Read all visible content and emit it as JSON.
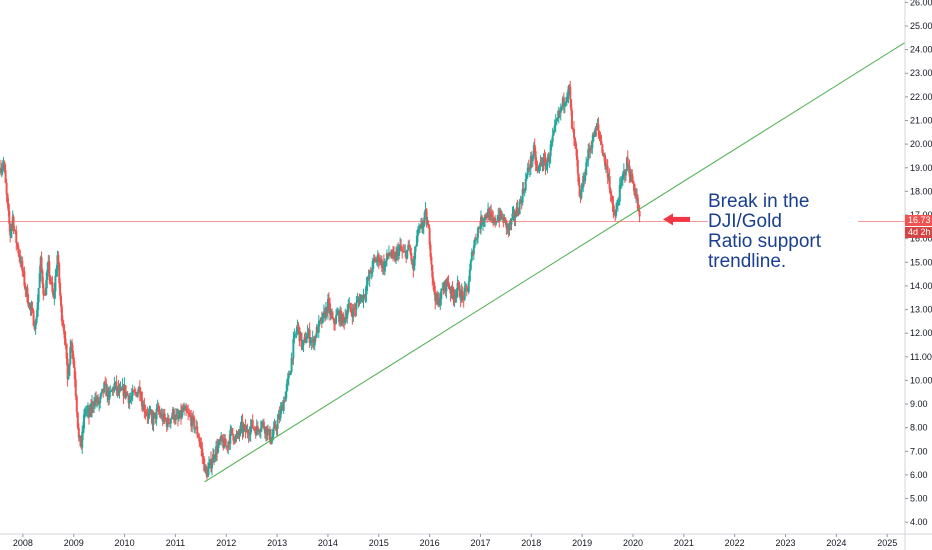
{
  "chart_data": {
    "type": "candlestick",
    "x_tick_labels": [
      "2008",
      "2009",
      "2010",
      "2011",
      "2012",
      "2013",
      "2014",
      "2015",
      "2016",
      "2017",
      "2018",
      "2019",
      "2020",
      "2021",
      "2022",
      "2023",
      "2024",
      "2025"
    ],
    "y_tick_labels": [
      "4.00",
      "5.00",
      "6.00",
      "7.00",
      "8.00",
      "9.00",
      "10.00",
      "11.00",
      "12.00",
      "13.00",
      "14.00",
      "15.00",
      "16.00",
      "17.00",
      "18.00",
      "19.00",
      "20.00",
      "21.00",
      "22.00",
      "23.00",
      "24.00",
      "25.00",
      "26.00"
    ],
    "ylim": [
      3.5,
      26.1
    ],
    "xlim": [
      2007.55,
      2025.35
    ],
    "axis_position": "right",
    "grid": false,
    "last_price": "16.73",
    "time_to_close": "4d 2h",
    "up_color": "#26a69a",
    "down_color": "#ef5350",
    "trendline_color": "#4caf50",
    "horizontal_line_color": "#ef5350",
    "price_path": [
      [
        2007.55,
        19.0
      ],
      [
        2007.62,
        19.2
      ],
      [
        2007.7,
        17.3
      ],
      [
        2007.75,
        16.2
      ],
      [
        2007.8,
        16.9
      ],
      [
        2007.85,
        16.1
      ],
      [
        2007.95,
        15.1
      ],
      [
        2008.05,
        13.9
      ],
      [
        2008.15,
        13.0
      ],
      [
        2008.25,
        12.3
      ],
      [
        2008.35,
        15.0
      ],
      [
        2008.42,
        13.5
      ],
      [
        2008.5,
        14.8
      ],
      [
        2008.6,
        13.4
      ],
      [
        2008.68,
        15.3
      ],
      [
        2008.75,
        13.0
      ],
      [
        2008.82,
        12.0
      ],
      [
        2008.88,
        10.0
      ],
      [
        2008.95,
        11.8
      ],
      [
        2009.02,
        10.2
      ],
      [
        2009.1,
        7.5
      ],
      [
        2009.15,
        7.2
      ],
      [
        2009.22,
        8.8
      ],
      [
        2009.3,
        8.5
      ],
      [
        2009.4,
        9.2
      ],
      [
        2009.5,
        9.0
      ],
      [
        2009.6,
        9.7
      ],
      [
        2009.7,
        9.3
      ],
      [
        2009.8,
        9.8
      ],
      [
        2009.9,
        9.4
      ],
      [
        2010.0,
        9.6
      ],
      [
        2010.1,
        9.2
      ],
      [
        2010.2,
        9.4
      ],
      [
        2010.3,
        9.7
      ],
      [
        2010.35,
        9.0
      ],
      [
        2010.45,
        8.6
      ],
      [
        2010.55,
        8.3
      ],
      [
        2010.65,
        8.7
      ],
      [
        2010.75,
        8.4
      ],
      [
        2010.85,
        8.2
      ],
      [
        2010.95,
        8.6
      ],
      [
        2011.05,
        8.3
      ],
      [
        2011.15,
        8.7
      ],
      [
        2011.25,
        8.5
      ],
      [
        2011.35,
        8.2
      ],
      [
        2011.45,
        7.7
      ],
      [
        2011.55,
        6.6
      ],
      [
        2011.6,
        6.0
      ],
      [
        2011.68,
        6.4
      ],
      [
        2011.78,
        7.0
      ],
      [
        2011.9,
        7.4
      ],
      [
        2012.0,
        7.2
      ],
      [
        2012.1,
        7.8
      ],
      [
        2012.2,
        7.5
      ],
      [
        2012.3,
        8.0
      ],
      [
        2012.4,
        7.8
      ],
      [
        2012.5,
        8.1
      ],
      [
        2012.6,
        7.9
      ],
      [
        2012.7,
        8.2
      ],
      [
        2012.8,
        7.9
      ],
      [
        2012.88,
        7.5
      ],
      [
        2012.95,
        7.9
      ],
      [
        2013.05,
        8.5
      ],
      [
        2013.15,
        9.3
      ],
      [
        2013.25,
        10.3
      ],
      [
        2013.32,
        11.5
      ],
      [
        2013.4,
        12.3
      ],
      [
        2013.5,
        11.4
      ],
      [
        2013.6,
        12.0
      ],
      [
        2013.7,
        11.6
      ],
      [
        2013.8,
        12.2
      ],
      [
        2013.9,
        12.6
      ],
      [
        2014.0,
        13.2
      ],
      [
        2014.1,
        12.4
      ],
      [
        2014.2,
        12.8
      ],
      [
        2014.3,
        12.5
      ],
      [
        2014.4,
        13.1
      ],
      [
        2014.5,
        12.9
      ],
      [
        2014.6,
        13.4
      ],
      [
        2014.7,
        13.6
      ],
      [
        2014.8,
        14.3
      ],
      [
        2014.9,
        15.0
      ],
      [
        2015.0,
        15.2
      ],
      [
        2015.1,
        14.8
      ],
      [
        2015.2,
        15.4
      ],
      [
        2015.3,
        15.1
      ],
      [
        2015.4,
        15.6
      ],
      [
        2015.5,
        15.3
      ],
      [
        2015.6,
        15.6
      ],
      [
        2015.68,
        14.7
      ],
      [
        2015.75,
        16.1
      ],
      [
        2015.85,
        16.5
      ],
      [
        2015.92,
        17.0
      ],
      [
        2016.0,
        16.0
      ],
      [
        2016.07,
        14.0
      ],
      [
        2016.15,
        13.2
      ],
      [
        2016.25,
        13.8
      ],
      [
        2016.35,
        14.2
      ],
      [
        2016.45,
        13.6
      ],
      [
        2016.55,
        13.9
      ],
      [
        2016.65,
        13.5
      ],
      [
        2016.75,
        13.9
      ],
      [
        2016.85,
        15.6
      ],
      [
        2016.95,
        16.4
      ],
      [
        2017.05,
        16.9
      ],
      [
        2017.15,
        17.1
      ],
      [
        2017.25,
        16.6
      ],
      [
        2017.35,
        17.0
      ],
      [
        2017.45,
        16.8
      ],
      [
        2017.55,
        16.4
      ],
      [
        2017.65,
        16.9
      ],
      [
        2017.75,
        17.3
      ],
      [
        2017.85,
        18.1
      ],
      [
        2017.95,
        19.0
      ],
      [
        2018.05,
        19.7
      ],
      [
        2018.12,
        18.8
      ],
      [
        2018.2,
        19.3
      ],
      [
        2018.3,
        19.1
      ],
      [
        2018.4,
        20.0
      ],
      [
        2018.5,
        20.9
      ],
      [
        2018.6,
        21.6
      ],
      [
        2018.7,
        22.2
      ],
      [
        2018.75,
        22.3
      ],
      [
        2018.8,
        20.7
      ],
      [
        2018.88,
        19.6
      ],
      [
        2018.95,
        17.6
      ],
      [
        2019.02,
        18.4
      ],
      [
        2019.1,
        19.4
      ],
      [
        2019.2,
        20.2
      ],
      [
        2019.3,
        20.7
      ],
      [
        2019.38,
        20.0
      ],
      [
        2019.45,
        19.2
      ],
      [
        2019.52,
        18.7
      ],
      [
        2019.58,
        17.4
      ],
      [
        2019.65,
        16.9
      ],
      [
        2019.72,
        17.8
      ],
      [
        2019.8,
        18.6
      ],
      [
        2019.88,
        19.2
      ],
      [
        2019.95,
        18.7
      ],
      [
        2020.02,
        18.2
      ],
      [
        2020.08,
        17.6
      ],
      [
        2020.13,
        16.73
      ]
    ],
    "trendline": {
      "start": [
        2011.57,
        5.7
      ],
      "end": [
        2025.35,
        24.3
      ]
    },
    "horizontal_line": {
      "value": 16.73
    }
  },
  "annotation": {
    "lines": [
      "Break in the",
      "DJI/Gold",
      "Ratio support",
      "trendline."
    ],
    "color": "#1a3f91",
    "arrow_color": "#f23645"
  }
}
